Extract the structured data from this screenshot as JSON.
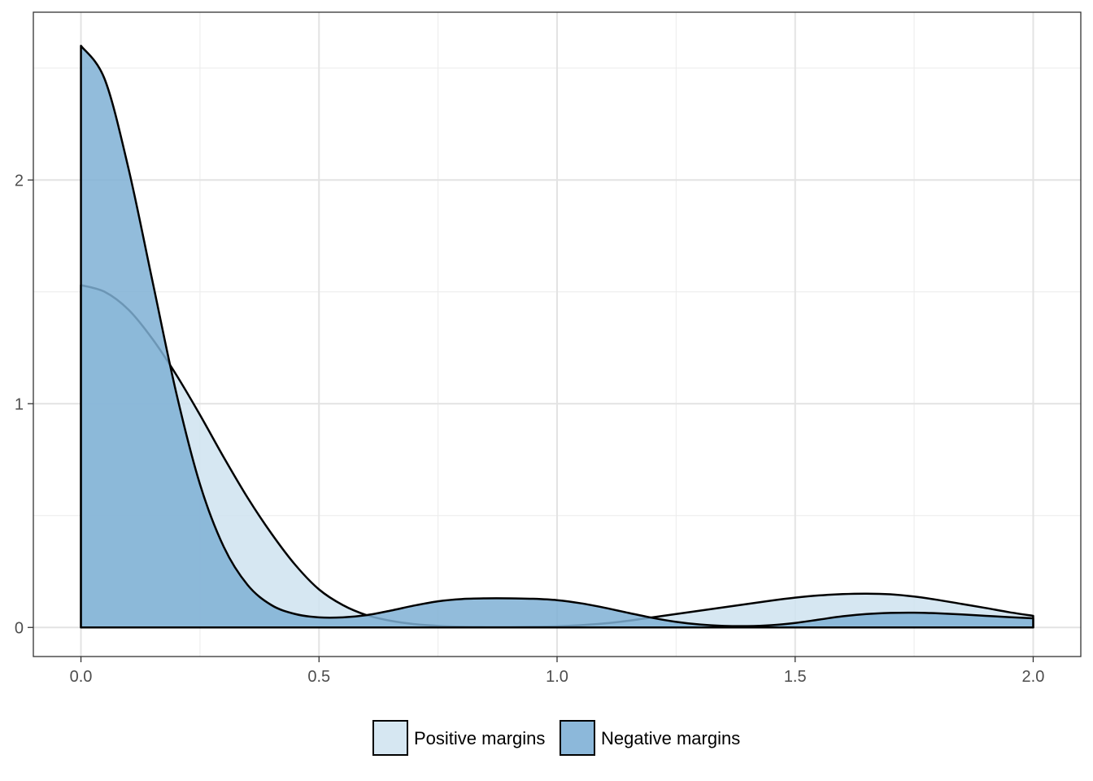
{
  "chart_data": {
    "type": "area",
    "chart_kind": "density",
    "title": "",
    "xlabel": "",
    "ylabel": "",
    "xlim": [
      -0.1,
      2.1
    ],
    "ylim": [
      -0.13,
      2.75
    ],
    "x_ticks": [
      0.0,
      0.5,
      1.0,
      1.5,
      2.0
    ],
    "x_tick_labels": [
      "0.0",
      "0.5",
      "1.0",
      "1.5",
      "2.0"
    ],
    "y_ticks": [
      0,
      1,
      2
    ],
    "y_tick_labels": [
      "0",
      "1",
      "2"
    ],
    "grid": true,
    "legend_position": "bottom",
    "series": [
      {
        "name": "Positive margins",
        "color": "#cfe3f0",
        "x": [
          0.0,
          0.05,
          0.1,
          0.15,
          0.2,
          0.25,
          0.3,
          0.35,
          0.4,
          0.45,
          0.5,
          0.55,
          0.6,
          0.65,
          0.7,
          0.75,
          0.8,
          0.85,
          0.9,
          0.95,
          1.0,
          1.05,
          1.1,
          1.15,
          1.2,
          1.25,
          1.3,
          1.35,
          1.4,
          1.45,
          1.5,
          1.55,
          1.6,
          1.65,
          1.7,
          1.75,
          1.8,
          1.85,
          1.9,
          1.95,
          2.0
        ],
        "values": [
          1.53,
          1.5,
          1.42,
          1.29,
          1.13,
          0.95,
          0.76,
          0.58,
          0.42,
          0.28,
          0.17,
          0.1,
          0.055,
          0.03,
          0.015,
          0.007,
          0.003,
          0.002,
          0.002,
          0.003,
          0.005,
          0.01,
          0.018,
          0.03,
          0.045,
          0.06,
          0.075,
          0.09,
          0.105,
          0.12,
          0.133,
          0.143,
          0.149,
          0.151,
          0.148,
          0.138,
          0.123,
          0.105,
          0.087,
          0.068,
          0.052
        ]
      },
      {
        "name": "Negative margins",
        "color": "#7fb0d5",
        "x": [
          0.0,
          0.05,
          0.1,
          0.15,
          0.2,
          0.25,
          0.3,
          0.35,
          0.4,
          0.45,
          0.5,
          0.55,
          0.6,
          0.65,
          0.7,
          0.75,
          0.8,
          0.85,
          0.9,
          0.95,
          1.0,
          1.05,
          1.1,
          1.15,
          1.2,
          1.25,
          1.3,
          1.35,
          1.4,
          1.45,
          1.5,
          1.55,
          1.6,
          1.65,
          1.7,
          1.75,
          1.8,
          1.85,
          1.9,
          1.95,
          2.0
        ],
        "values": [
          2.6,
          2.45,
          2.05,
          1.55,
          1.05,
          0.64,
          0.36,
          0.19,
          0.1,
          0.06,
          0.045,
          0.045,
          0.055,
          0.075,
          0.098,
          0.117,
          0.127,
          0.13,
          0.13,
          0.128,
          0.122,
          0.108,
          0.088,
          0.065,
          0.043,
          0.025,
          0.013,
          0.007,
          0.006,
          0.01,
          0.02,
          0.035,
          0.05,
          0.06,
          0.065,
          0.066,
          0.063,
          0.058,
          0.052,
          0.046,
          0.041
        ]
      }
    ]
  }
}
